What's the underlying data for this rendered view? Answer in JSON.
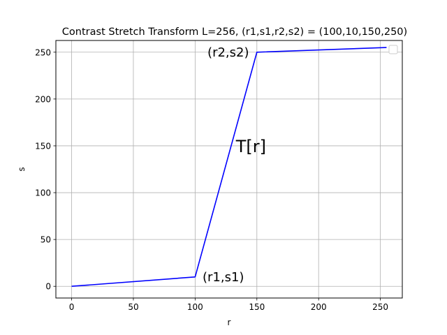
{
  "chart_data": {
    "type": "line",
    "title": "Contrast Stretch Transform L=256, (r1,s1,r2,s2) = (100,10,150,250)",
    "xlabel": "r",
    "ylabel": "s",
    "xlim": [
      -12.75,
      267.75
    ],
    "ylim": [
      -12.5,
      262.5
    ],
    "xticks": [
      0,
      50,
      100,
      150,
      200,
      250
    ],
    "yticks": [
      0,
      50,
      100,
      150,
      200,
      250
    ],
    "grid": true,
    "legend": "top-right",
    "series": [
      {
        "color": "#0000ff",
        "x": [
          0,
          100,
          150,
          255
        ],
        "y": [
          0,
          10,
          250,
          255
        ]
      }
    ],
    "annotations": [
      {
        "text": "(r1,s1)",
        "x": 106,
        "y": 10
      },
      {
        "text": "(r2,s2)",
        "x": 110,
        "y": 250
      },
      {
        "text": "T[r]",
        "x": 133,
        "y": 150
      }
    ]
  }
}
